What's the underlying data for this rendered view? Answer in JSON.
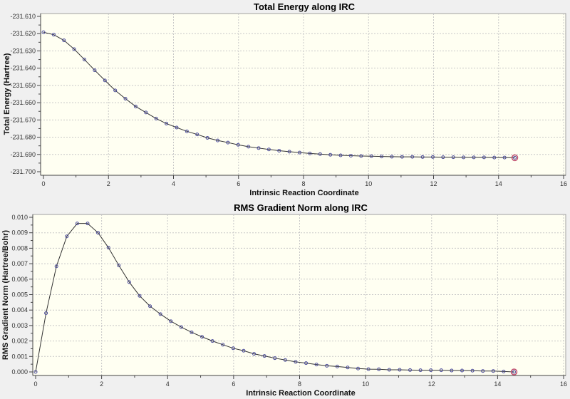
{
  "chart_data": [
    {
      "type": "line",
      "title": "Total Energy along IRC",
      "xlabel": "Intrinsic Reaction Coordinate",
      "ylabel": "Total Energy (Hartree)",
      "xlim": [
        0,
        16
      ],
      "ylim": [
        -231.7,
        -231.61
      ],
      "xticks": [
        "0",
        "2",
        "4",
        "6",
        "8",
        "10",
        "12",
        "14",
        "16"
      ],
      "yticks": [
        "-231.610",
        "-231.620",
        "-231.630",
        "-231.640",
        "-231.650",
        "-231.660",
        "-231.670",
        "-231.680",
        "-231.690",
        "-231.700"
      ],
      "grid": true,
      "x_step": 0.3152,
      "values": [
        -231.6192,
        -231.6206,
        -231.6239,
        -231.629,
        -231.635,
        -231.6412,
        -231.6471,
        -231.6529,
        -231.6577,
        -231.6622,
        -231.6657,
        -231.6692,
        -231.6721,
        -231.6744,
        -231.6766,
        -231.6784,
        -231.6804,
        -231.6819,
        -231.6831,
        -231.6844,
        -231.6855,
        -231.6863,
        -231.6871,
        -231.6878,
        -231.6884,
        -231.6889,
        -231.6894,
        -231.6898,
        -231.6902,
        -231.6905,
        -231.6907,
        -231.6909,
        -231.691,
        -231.6912,
        -231.6913,
        -231.6914,
        -231.6914,
        -231.6915,
        -231.6915,
        -231.6916,
        -231.6916,
        -231.6917,
        -231.6917,
        -231.6917,
        -231.6918,
        -231.6918,
        -231.6919
      ],
      "highlighted_point": "last"
    },
    {
      "type": "line",
      "title": "RMS Gradient Norm along IRC",
      "xlabel": "Intrinsic Reaction Coordinate",
      "ylabel": "RMS Gradient Norm (Hartree/Bohr)",
      "xlim": [
        0,
        16
      ],
      "ylim": [
        0.0,
        0.01
      ],
      "xticks": [
        "0",
        "2",
        "4",
        "6",
        "8",
        "10",
        "12",
        "14",
        "16"
      ],
      "yticks": [
        "0.010",
        "0.009",
        "0.008",
        "0.007",
        "0.006",
        "0.005",
        "0.004",
        "0.003",
        "0.002",
        "0.001",
        "0.000"
      ],
      "grid": true,
      "x_step": 0.3152,
      "values": [
        0.0,
        0.0038,
        0.00683,
        0.00877,
        0.0096,
        0.0096,
        0.009,
        0.00804,
        0.00689,
        0.00581,
        0.00492,
        0.00425,
        0.00374,
        0.00328,
        0.0029,
        0.00256,
        0.00227,
        0.002,
        0.00176,
        0.00153,
        0.00137,
        0.00117,
        0.00103,
        0.00089,
        0.00077,
        0.00065,
        0.00057,
        0.00048,
        0.0004,
        0.00035,
        0.00029,
        0.00022,
        0.00018,
        0.00017,
        0.00014,
        0.00014,
        0.00012,
        0.00011,
        0.00011,
        0.00011,
        9e-05,
        9e-05,
        8e-05,
        6e-05,
        6e-05,
        3e-05,
        0.0
      ],
      "highlighted_point": "last"
    }
  ],
  "colors": {
    "plot_bg": "#fffff2",
    "line": "#333333",
    "marker": "#4a4a9a",
    "highlight": "#c05070",
    "grid": "#c8c8c8"
  }
}
